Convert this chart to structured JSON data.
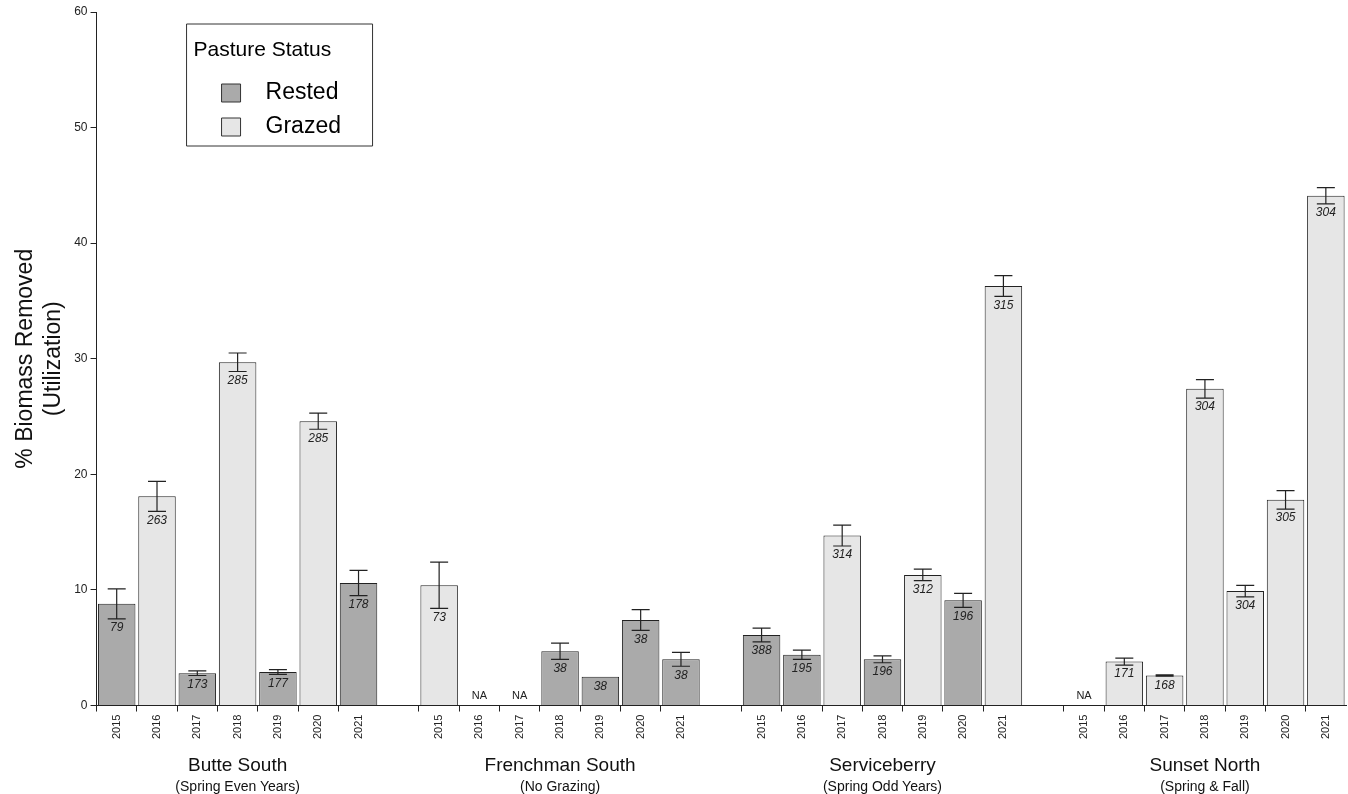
{
  "chart_data": {
    "type": "bar",
    "ylabel": "% Biomass Removed\n(Utilization)",
    "legend_title": "Pasture Status",
    "legend": "top left",
    "grid": false,
    "categories": [
      "2015",
      "2016",
      "2017",
      "2018",
      "2019",
      "2020",
      "2021",
      null,
      "2015",
      "2016",
      "2017",
      "2018",
      "2019",
      "2020",
      "2021",
      null,
      "2015",
      "2016",
      "2017",
      "2018",
      "2019",
      "2020",
      "2021",
      null,
      "2015",
      "2016",
      "2017",
      "2018",
      "2019",
      "2020",
      "2021"
    ],
    "ylim": [
      0,
      60
    ],
    "yticks": [
      0,
      10,
      20,
      30,
      40,
      50,
      60
    ],
    "series": [
      {
        "name": "Rested",
        "color": "#aaaaaa",
        "values": [
          8.8,
          null,
          2.8,
          null,
          2.9,
          null,
          10.6,
          null,
          null,
          null,
          null,
          4.7,
          2.5,
          7.4,
          4.0,
          null,
          6.1,
          4.4,
          null,
          4.0,
          null,
          9.1,
          null,
          null,
          null,
          null,
          null,
          null,
          null,
          null,
          null
        ],
        "errors": [
          1.3,
          null,
          0.2,
          null,
          0.2,
          null,
          1.1,
          null,
          null,
          null,
          null,
          0.7,
          null,
          0.9,
          0.6,
          null,
          0.6,
          0.4,
          null,
          0.3,
          null,
          0.6,
          null,
          null,
          null,
          null,
          null,
          null,
          null,
          null,
          null
        ]
      },
      {
        "name": "Grazed",
        "color": "#e6e6e6",
        "values": [
          null,
          18.1,
          null,
          29.7,
          null,
          24.6,
          null,
          null,
          10.4,
          null,
          null,
          null,
          null,
          null,
          null,
          null,
          null,
          null,
          14.7,
          null,
          11.3,
          null,
          36.3,
          null,
          null,
          3.8,
          2.6,
          27.4,
          9.9,
          17.8,
          44.1
        ],
        "errors": [
          null,
          1.3,
          null,
          0.8,
          null,
          0.7,
          null,
          null,
          2.0,
          null,
          null,
          null,
          null,
          null,
          null,
          null,
          null,
          null,
          0.9,
          null,
          0.5,
          null,
          0.9,
          null,
          null,
          0.3,
          0.05,
          0.8,
          0.5,
          0.8,
          0.7
        ]
      }
    ],
    "annotations": [
      "Butte South\n(Spring Even Years)",
      "Frenchman South\n(No Grazing)",
      "Serviceberry\n(Spring Odd Years)",
      "Sunset North\n(Spring & Fall)",
      "79",
      "263",
      "173",
      "285",
      "177",
      "285",
      "178",
      "73",
      "NA",
      "NA",
      "38",
      "38",
      "38",
      "38",
      "388",
      "195",
      "314",
      "196",
      "312",
      "196",
      "315",
      "NA",
      "171",
      "168",
      "304",
      "304",
      "305",
      "304"
    ]
  }
}
